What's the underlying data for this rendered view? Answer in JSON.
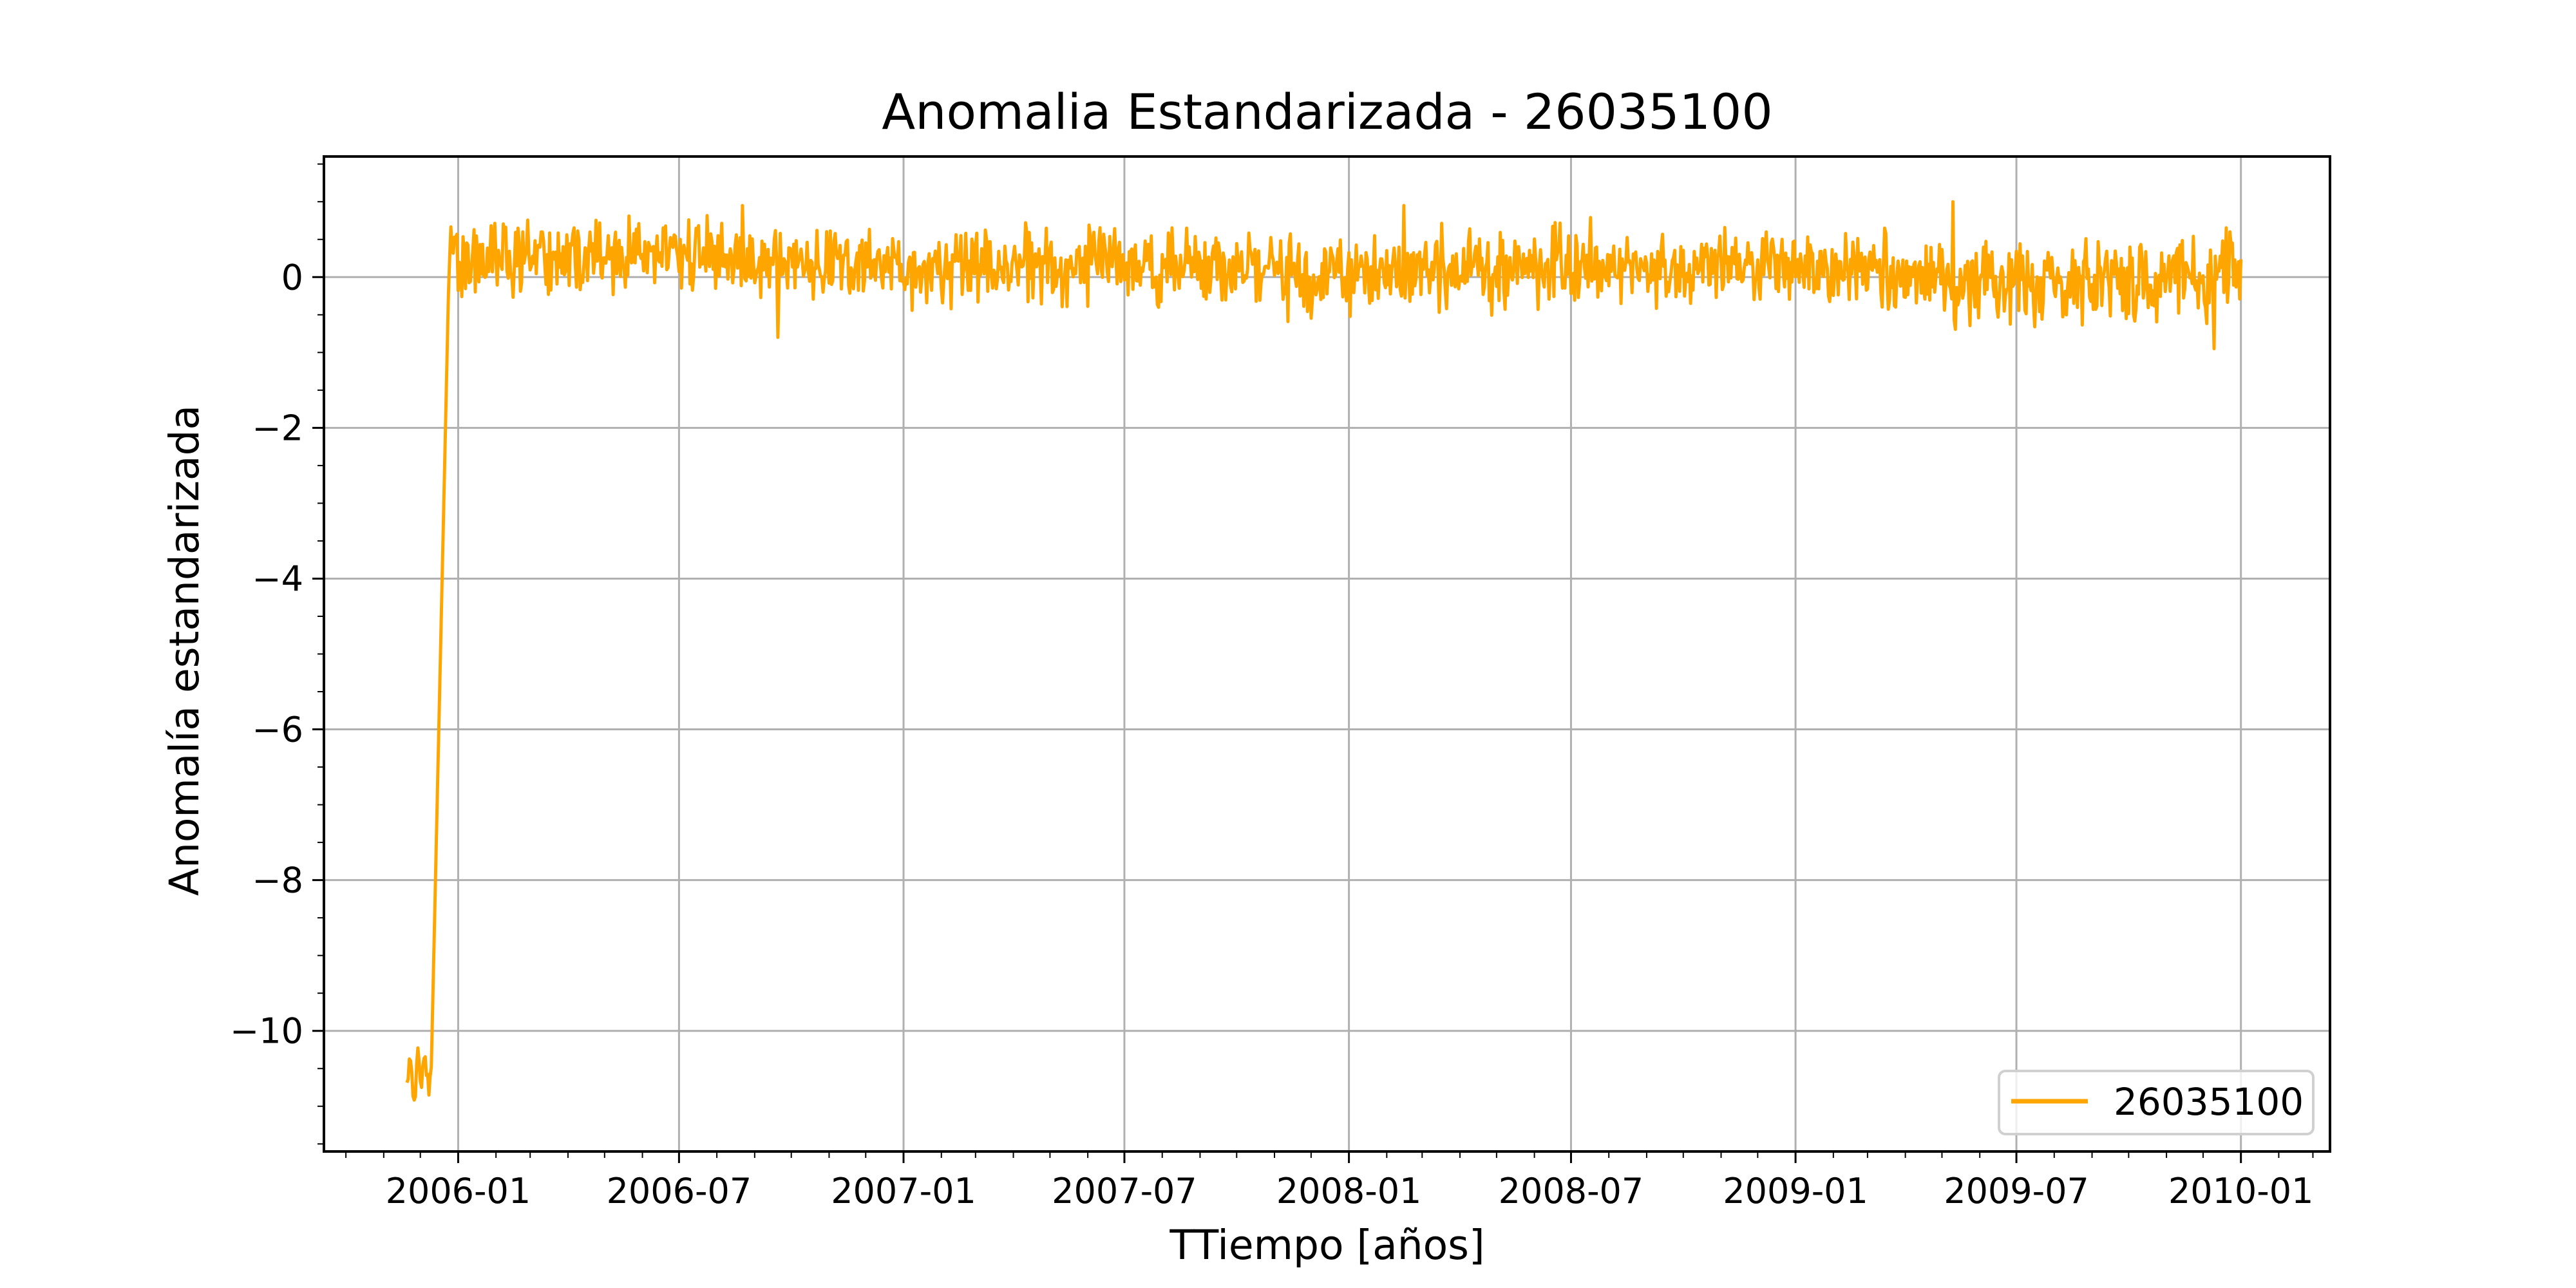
{
  "chart_data": {
    "type": "line",
    "title": "Anomalia Estandarizada - 26035100",
    "xlabel": "TTiempo [años]",
    "ylabel": "Anomalía estandarizada",
    "x_ticks": [
      "2006-01",
      "2006-07",
      "2007-01",
      "2007-07",
      "2008-01",
      "2008-07",
      "2009-01",
      "2009-07",
      "2010-01"
    ],
    "y_ticks": [
      "0",
      "−2",
      "−4",
      "−6",
      "−8",
      "−10"
    ],
    "xlim": [
      "2005-09-13",
      "2010-03-15"
    ],
    "ylim": [
      -11.6,
      1.6
    ],
    "grid": true,
    "legend_position": "lower right",
    "series": [
      {
        "name": "26035100",
        "color": "#ffa500",
        "pattern": "daily noisy standardized anomaly: about -10.8 from 2005-11-20 to 2005-12-10, rising to about 0.4 by 2005-12-25, then fluctuating between about -0.9 and 1.0 until 2010-01-01",
        "points": [
          {
            "x": "2005-11-20",
            "y": -10.6
          },
          {
            "x": "2005-11-23",
            "y": -10.3
          },
          {
            "x": "2005-11-26",
            "y": -10.9
          },
          {
            "x": "2005-11-29",
            "y": -10.4
          },
          {
            "x": "2005-12-02",
            "y": -10.8
          },
          {
            "x": "2005-12-05",
            "y": -10.2
          },
          {
            "x": "2005-12-08",
            "y": -11.0
          },
          {
            "x": "2005-12-10",
            "y": -10.5
          },
          {
            "x": "2005-12-25",
            "y": 0.5
          },
          {
            "x": "2006-01-01",
            "y": 0.2
          },
          {
            "x": "2006-07-01",
            "y": 0.3
          },
          {
            "x": "2007-01-01",
            "y": 0.1
          },
          {
            "x": "2007-07-01",
            "y": 0.2
          },
          {
            "x": "2008-01-01",
            "y": 0.0
          },
          {
            "x": "2008-07-01",
            "y": 0.2
          },
          {
            "x": "2009-01-01",
            "y": 0.1
          },
          {
            "x": "2009-07-01",
            "y": -0.1
          },
          {
            "x": "2010-01-01",
            "y": 0.0
          }
        ],
        "noise_amplitude": 0.45,
        "extremes": [
          {
            "x": "2008-02-15",
            "y": 0.95
          },
          {
            "x": "2009-05-10",
            "y": 1.0
          },
          {
            "x": "2009-12-10",
            "y": -0.95
          },
          {
            "x": "2006-09-20",
            "y": -0.8
          }
        ]
      }
    ]
  }
}
